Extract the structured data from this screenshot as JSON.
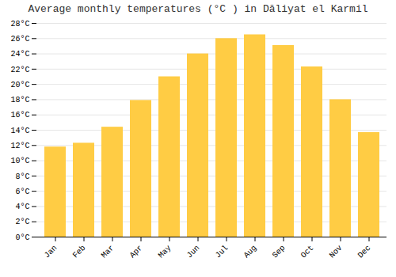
{
  "chart_data": {
    "type": "bar",
    "title": "Average monthly temperatures (°C ) in Dāliyat el Karmil",
    "categories": [
      "Jan",
      "Feb",
      "Mar",
      "Apr",
      "May",
      "Jun",
      "Jul",
      "Aug",
      "Sep",
      "Oct",
      "Nov",
      "Dec"
    ],
    "values": [
      11.8,
      12.3,
      14.4,
      17.9,
      21.0,
      24.0,
      26.0,
      26.5,
      25.1,
      22.3,
      18.0,
      13.7
    ],
    "color": "#FFCC44",
    "ylim": [
      0,
      28
    ],
    "yticks": [
      {
        "value": 0,
        "label": "0°C"
      },
      {
        "value": 2,
        "label": "2°C"
      },
      {
        "value": 4,
        "label": "4°C"
      },
      {
        "value": 6,
        "label": "6°C"
      },
      {
        "value": 8,
        "label": "8°C"
      },
      {
        "value": 10,
        "label": "10°C"
      },
      {
        "value": 12,
        "label": "12°C"
      },
      {
        "value": 14,
        "label": "14°C"
      },
      {
        "value": 16,
        "label": "16°C"
      },
      {
        "value": 18,
        "label": "18°C"
      },
      {
        "value": 20,
        "label": "20°C"
      },
      {
        "value": 22,
        "label": "22°C"
      },
      {
        "value": 24,
        "label": "24°C"
      },
      {
        "value": 26,
        "label": "26°C"
      },
      {
        "value": 28,
        "label": "28°C"
      }
    ],
    "grid": true
  }
}
